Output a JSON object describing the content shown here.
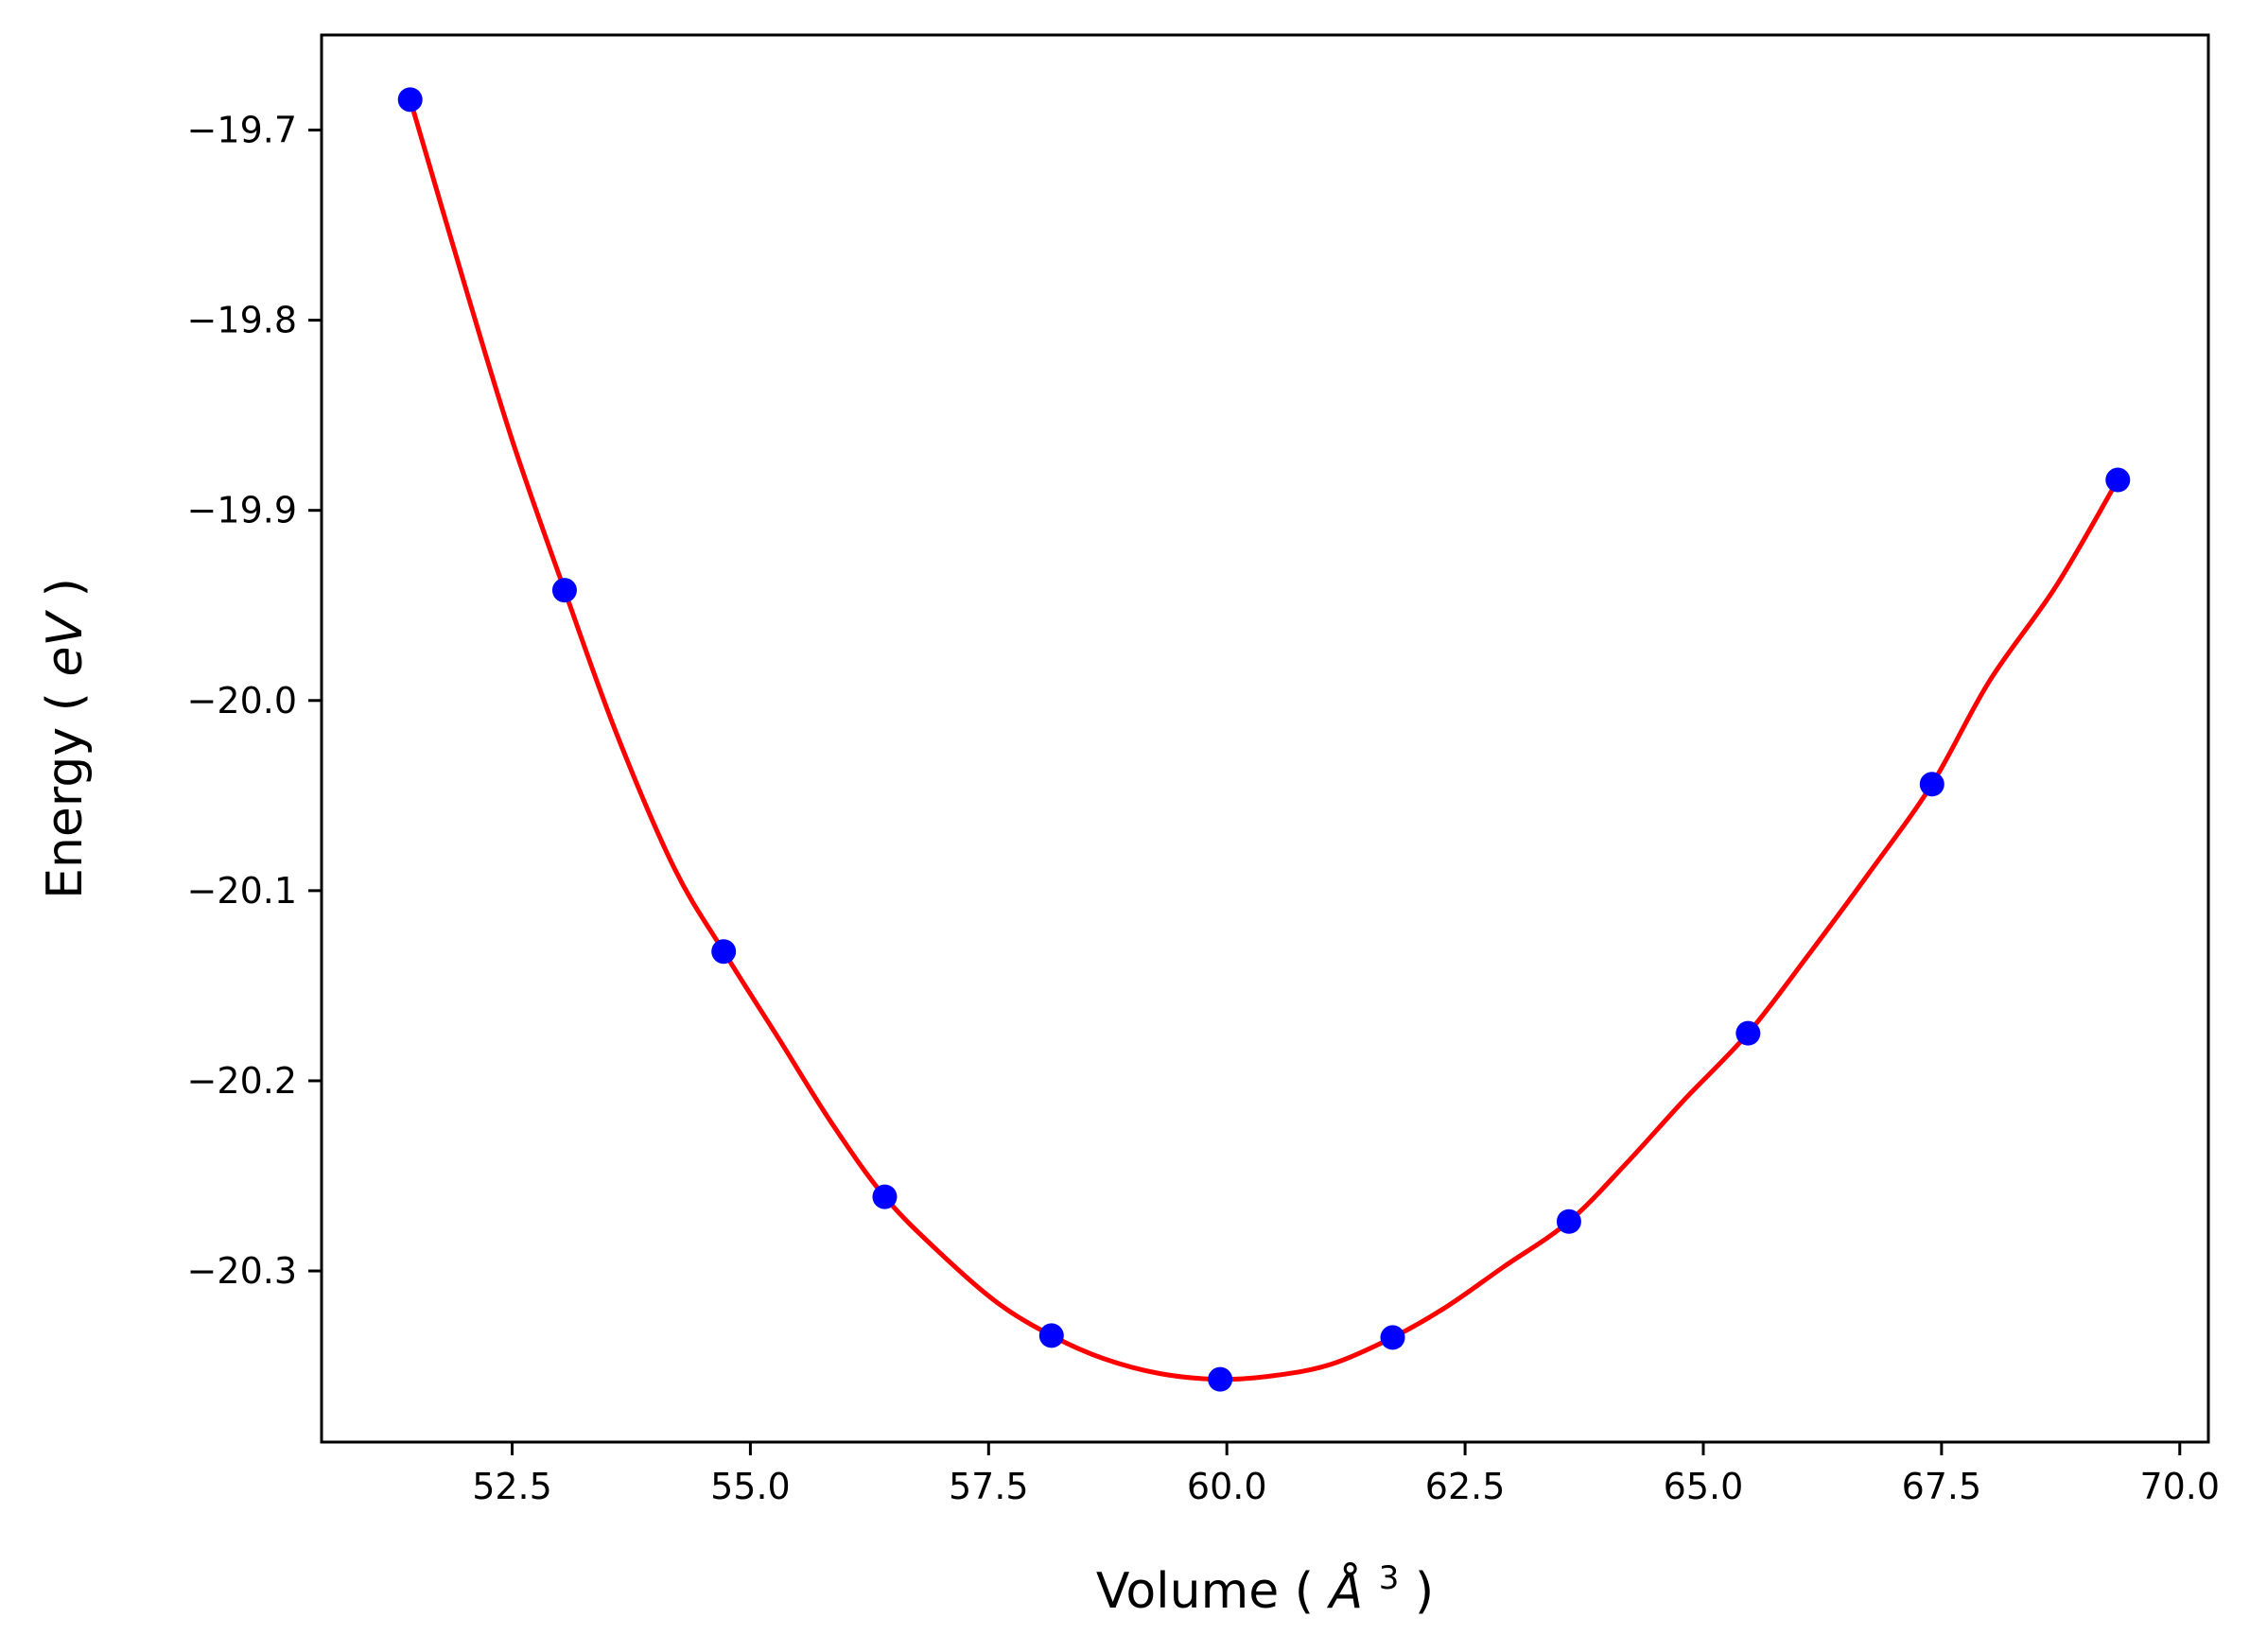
{
  "chart_data": {
    "type": "scatter",
    "xlabel": "Volume",
    "xlabel_unit": "Å",
    "xlabel_unit_exp": "3",
    "ylabel": "Energy",
    "ylabel_unit": "eV",
    "xlim": [
      50.5,
      70.3
    ],
    "ylim": [
      -20.39,
      -19.65
    ],
    "x_ticks": [
      52.5,
      55.0,
      57.5,
      60.0,
      62.5,
      65.0,
      67.5,
      70.0
    ],
    "y_ticks": [
      -19.7,
      -19.8,
      -19.9,
      -20.0,
      -20.1,
      -20.2,
      -20.3
    ],
    "x_tick_labels": [
      "52.5",
      "55.0",
      "57.5",
      "60.0",
      "62.5",
      "65.0",
      "67.5",
      "70.0"
    ],
    "y_tick_labels": [
      "−19.7",
      "−19.8",
      "−19.9",
      "−20.0",
      "−20.1",
      "−20.2",
      "−20.3"
    ],
    "grid": false,
    "series": [
      {
        "kind": "points",
        "color": "#0000ff",
        "x": [
          51.43,
          53.05,
          54.72,
          56.41,
          58.16,
          59.93,
          61.74,
          63.59,
          65.47,
          67.4,
          69.35
        ],
        "y": [
          -19.684,
          -19.942,
          -20.132,
          -20.261,
          -20.334,
          -20.357,
          -20.335,
          -20.274,
          -20.175,
          -20.044,
          -19.884
        ]
      },
      {
        "kind": "fit-curve",
        "color": "#ff0000",
        "x": [
          51.43,
          52.0,
          52.5,
          53.05,
          53.6,
          54.2,
          54.72,
          55.3,
          55.85,
          56.41,
          57.0,
          57.6,
          58.16,
          58.7,
          59.3,
          59.93,
          60.5,
          61.1,
          61.74,
          62.3,
          62.9,
          63.59,
          64.2,
          64.8,
          65.47,
          66.1,
          66.75,
          67.4,
          68.0,
          68.7,
          69.35
        ],
        "y": [
          -19.684,
          -19.781,
          -19.863,
          -19.942,
          -20.018,
          -20.088,
          -20.132,
          -20.178,
          -20.222,
          -20.261,
          -20.291,
          -20.317,
          -20.334,
          -20.346,
          -20.354,
          -20.357,
          -20.355,
          -20.349,
          -20.335,
          -20.319,
          -20.298,
          -20.274,
          -20.243,
          -20.21,
          -20.175,
          -20.134,
          -20.09,
          -20.044,
          -19.99,
          -19.94,
          -19.884
        ]
      }
    ]
  }
}
